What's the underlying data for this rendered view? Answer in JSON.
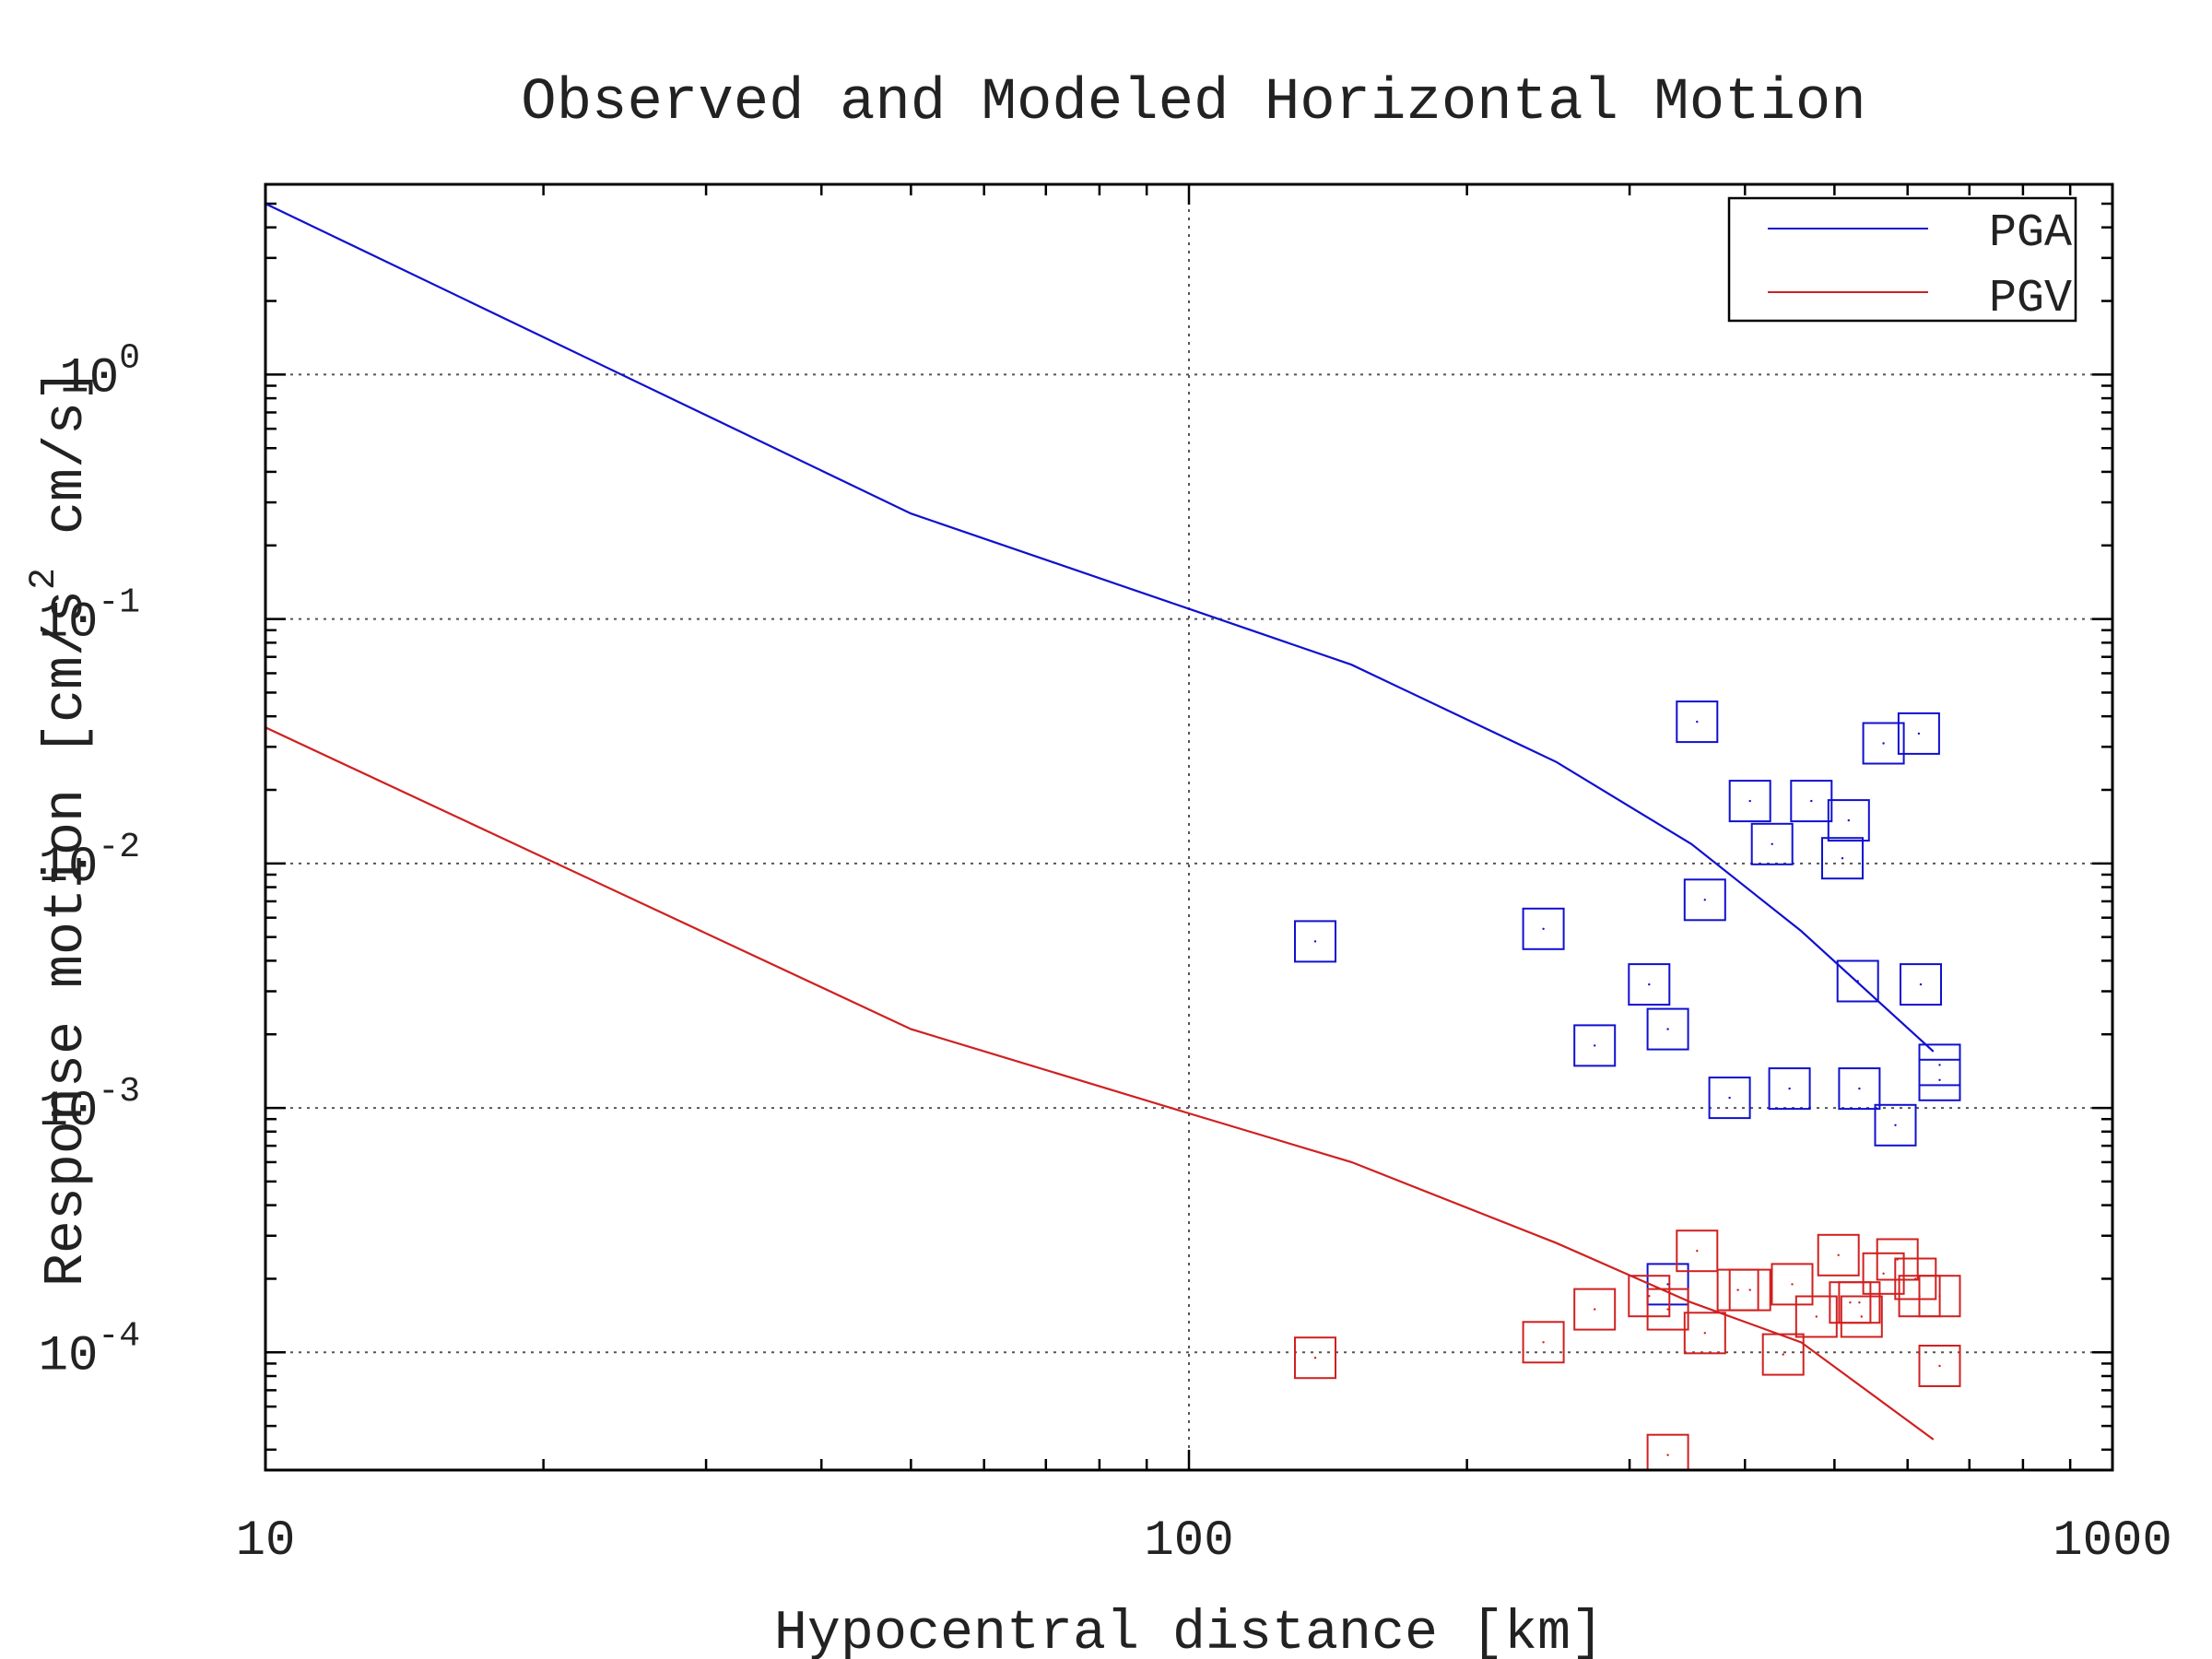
{
  "chart_data": {
    "type": "scatter",
    "title": "Observed and Modeled Horizontal Motion",
    "xlabel": "Hypocentral distance [km]",
    "ylabel": "Response motion [cm/s^2 cm/s]",
    "ylabel_parts": [
      "Response motion [cm/s",
      "2",
      " cm/s]"
    ],
    "xscale": "log",
    "yscale": "log",
    "xlim": [
      10,
      1000
    ],
    "ylim": [
      3.3e-05,
      6
    ],
    "x_ticks": [
      {
        "value": 10,
        "label": "10"
      },
      {
        "value": 100,
        "label": "100"
      },
      {
        "value": 1000,
        "label": "1000"
      }
    ],
    "y_ticks": [
      {
        "value": 0.0001,
        "base": "10",
        "exp": "-4"
      },
      {
        "value": 0.001,
        "base": "10",
        "exp": "-3"
      },
      {
        "value": 0.01,
        "base": "10",
        "exp": "-2"
      },
      {
        "value": 0.1,
        "base": "10",
        "exp": "-1"
      },
      {
        "value": 1,
        "base": "10",
        "exp": "0"
      }
    ],
    "grid": true,
    "legend_position": "top-right",
    "series": [
      {
        "name": "PGA",
        "color": "#1010d0",
        "model_line": [
          [
            10,
            5.0
          ],
          [
            50,
            0.27
          ],
          [
            100,
            0.11
          ],
          [
            150,
            0.065
          ],
          [
            250,
            0.026
          ],
          [
            350,
            0.012
          ],
          [
            460,
            0.0053
          ],
          [
            640,
            0.0017
          ]
        ],
        "observed": [
          [
            137,
            0.0048
          ],
          [
            242,
            0.0054
          ],
          [
            275,
            0.0018
          ],
          [
            315,
            0.0032
          ],
          [
            330,
            0.0021
          ],
          [
            355,
            0.038
          ],
          [
            362,
            0.0071
          ],
          [
            385,
            0.0011
          ],
          [
            405,
            0.018
          ],
          [
            428,
            0.012
          ],
          [
            447,
            0.0012
          ],
          [
            472,
            0.018
          ],
          [
            510,
            0.0105
          ],
          [
            518,
            0.015
          ],
          [
            530,
            0.0033
          ],
          [
            532,
            0.0012
          ],
          [
            565,
            0.031
          ],
          [
            582,
            0.00085
          ],
          [
            617,
            0.034
          ],
          [
            620,
            0.0032
          ],
          [
            650,
            0.0015
          ],
          [
            650,
            0.0013
          ],
          [
            330,
            0.00019
          ]
        ]
      },
      {
        "name": "PGV",
        "color": "#d02020",
        "model_line": [
          [
            10,
            0.036
          ],
          [
            50,
            0.0021
          ],
          [
            100,
            0.00095
          ],
          [
            150,
            0.0006
          ],
          [
            250,
            0.00028
          ],
          [
            350,
            0.00016
          ],
          [
            460,
            0.00011
          ],
          [
            640,
            4.4e-05
          ]
        ],
        "observed": [
          [
            137,
            9.5e-05
          ],
          [
            242,
            0.00011
          ],
          [
            275,
            0.00015
          ],
          [
            315,
            0.00017
          ],
          [
            330,
            3.8e-05
          ],
          [
            330,
            0.00015
          ],
          [
            355,
            0.00026
          ],
          [
            362,
            0.00012
          ],
          [
            393,
            0.00018
          ],
          [
            405,
            0.00018
          ],
          [
            440,
            9.8e-05
          ],
          [
            450,
            0.00019
          ],
          [
            478,
            0.00014
          ],
          [
            505,
            0.00025
          ],
          [
            520,
            0.00016
          ],
          [
            532,
            0.00016
          ],
          [
            535,
            0.00014
          ],
          [
            565,
            0.00021
          ],
          [
            585,
            0.00024
          ],
          [
            612,
            0.0002
          ],
          [
            618,
            0.00017
          ],
          [
            650,
            0.00017
          ],
          [
            650,
            8.8e-05
          ]
        ]
      }
    ]
  }
}
